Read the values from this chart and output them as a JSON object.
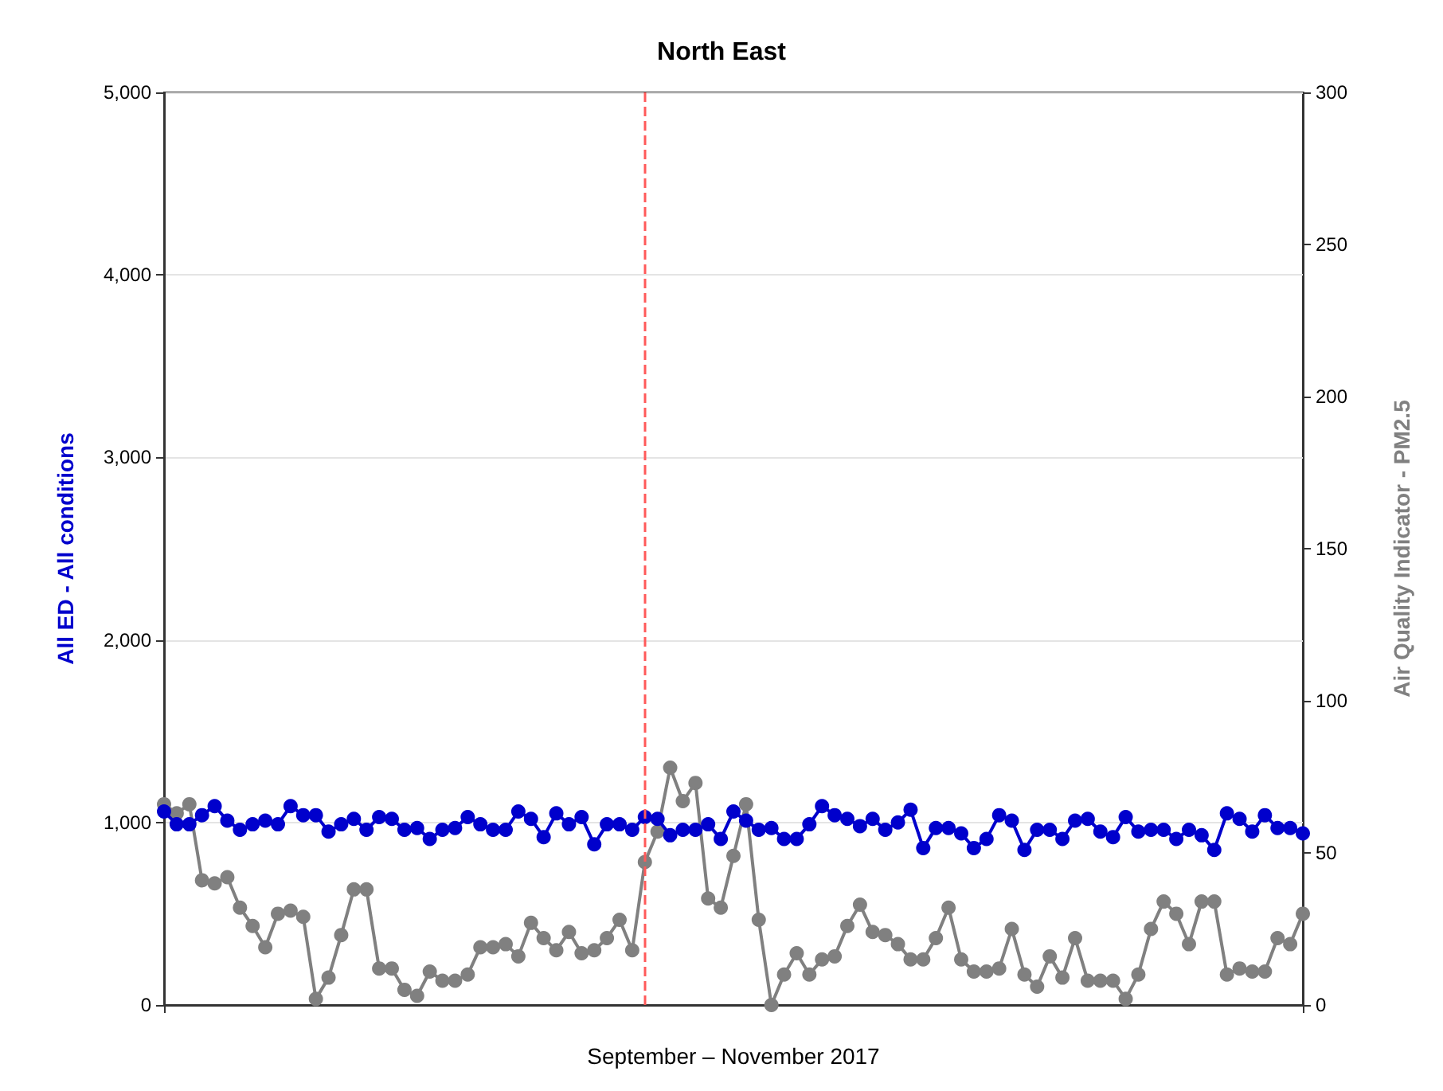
{
  "chart_data": {
    "type": "line",
    "title": "North East",
    "xlabel": "September – November 2017",
    "ylabel": "All ED - All conditions",
    "y2label": "Air Quality Indicator - PM2.5",
    "categories": [
      null,
      null,
      null,
      null,
      null,
      null,
      null,
      null,
      null,
      null,
      null,
      null,
      null,
      null,
      null,
      null,
      null,
      null,
      null,
      null,
      null,
      null,
      null,
      null,
      null,
      null,
      null,
      null,
      null,
      null,
      null,
      null,
      null,
      null,
      null,
      null,
      null,
      null,
      null,
      null,
      null,
      null,
      null,
      null,
      null,
      null,
      null,
      null,
      null,
      null,
      null,
      null,
      null,
      null,
      null,
      null,
      null,
      null,
      null,
      null,
      null,
      null,
      null,
      null,
      null,
      null,
      null,
      null,
      null,
      null,
      null,
      null,
      null,
      null,
      null,
      null,
      null,
      null,
      null,
      null,
      null,
      null,
      null,
      null,
      null,
      null,
      null,
      null,
      null,
      null,
      null
    ],
    "series": [
      {
        "color": "#0000cc",
        "values": [
          1060,
          990,
          990,
          1040,
          1090,
          1010,
          960,
          990,
          1010,
          990,
          1090,
          1040,
          1040,
          950,
          990,
          1020,
          960,
          1030,
          1020,
          960,
          970,
          910,
          960,
          970,
          1030,
          990,
          960,
          960,
          1060,
          1020,
          920,
          1050,
          990,
          1030,
          880,
          990,
          990,
          960,
          1030,
          1020,
          930,
          960,
          960,
          990,
          910,
          1060,
          1010,
          960,
          970,
          910,
          910,
          990,
          1090,
          1040,
          1020,
          980,
          1020,
          960,
          1000,
          1070,
          860,
          970,
          970,
          940,
          860,
          910,
          1040,
          1010,
          850,
          960,
          960,
          910,
          1010,
          1020,
          950,
          920,
          1030,
          950,
          960,
          960,
          910,
          960,
          930,
          850,
          1050,
          1020,
          950,
          1040,
          970,
          970,
          940
        ]
      },
      {
        "color": "#808080",
        "axis": "y2",
        "values": [
          66,
          63,
          66,
          41,
          40,
          42,
          32,
          26,
          19,
          30,
          31,
          29,
          2,
          9,
          23,
          38,
          38,
          12,
          12,
          5,
          3,
          11,
          8,
          8,
          10,
          19,
          19,
          20,
          16,
          27,
          22,
          18,
          24,
          17,
          18,
          22,
          28,
          18,
          47,
          57,
          78,
          67,
          73,
          35,
          32,
          49,
          66,
          28,
          0,
          10,
          17,
          10,
          15,
          16,
          26,
          33,
          24,
          23,
          20,
          15,
          15,
          22,
          32,
          15,
          11,
          11,
          12,
          25,
          10,
          6,
          16,
          9,
          22,
          8,
          8,
          8,
          2,
          10,
          25,
          34,
          30,
          20,
          34,
          34,
          10,
          12,
          11,
          11,
          22,
          20,
          30
        ]
      }
    ],
    "ylim": [
      0,
      5000
    ],
    "yticks": [
      {
        "value": 0,
        "label": "0"
      },
      {
        "value": 1000,
        "label": "1,000"
      },
      {
        "value": 2000,
        "label": "2,000"
      },
      {
        "value": 3000,
        "label": "3,000"
      },
      {
        "value": 4000,
        "label": "4,000"
      },
      {
        "value": 5000,
        "label": "5,000"
      }
    ],
    "y2lim": [
      0,
      300
    ],
    "y2ticks": [
      0,
      50,
      100,
      150,
      200,
      250,
      300
    ],
    "grid": true,
    "marker": "circle",
    "line_style": "solid"
  }
}
